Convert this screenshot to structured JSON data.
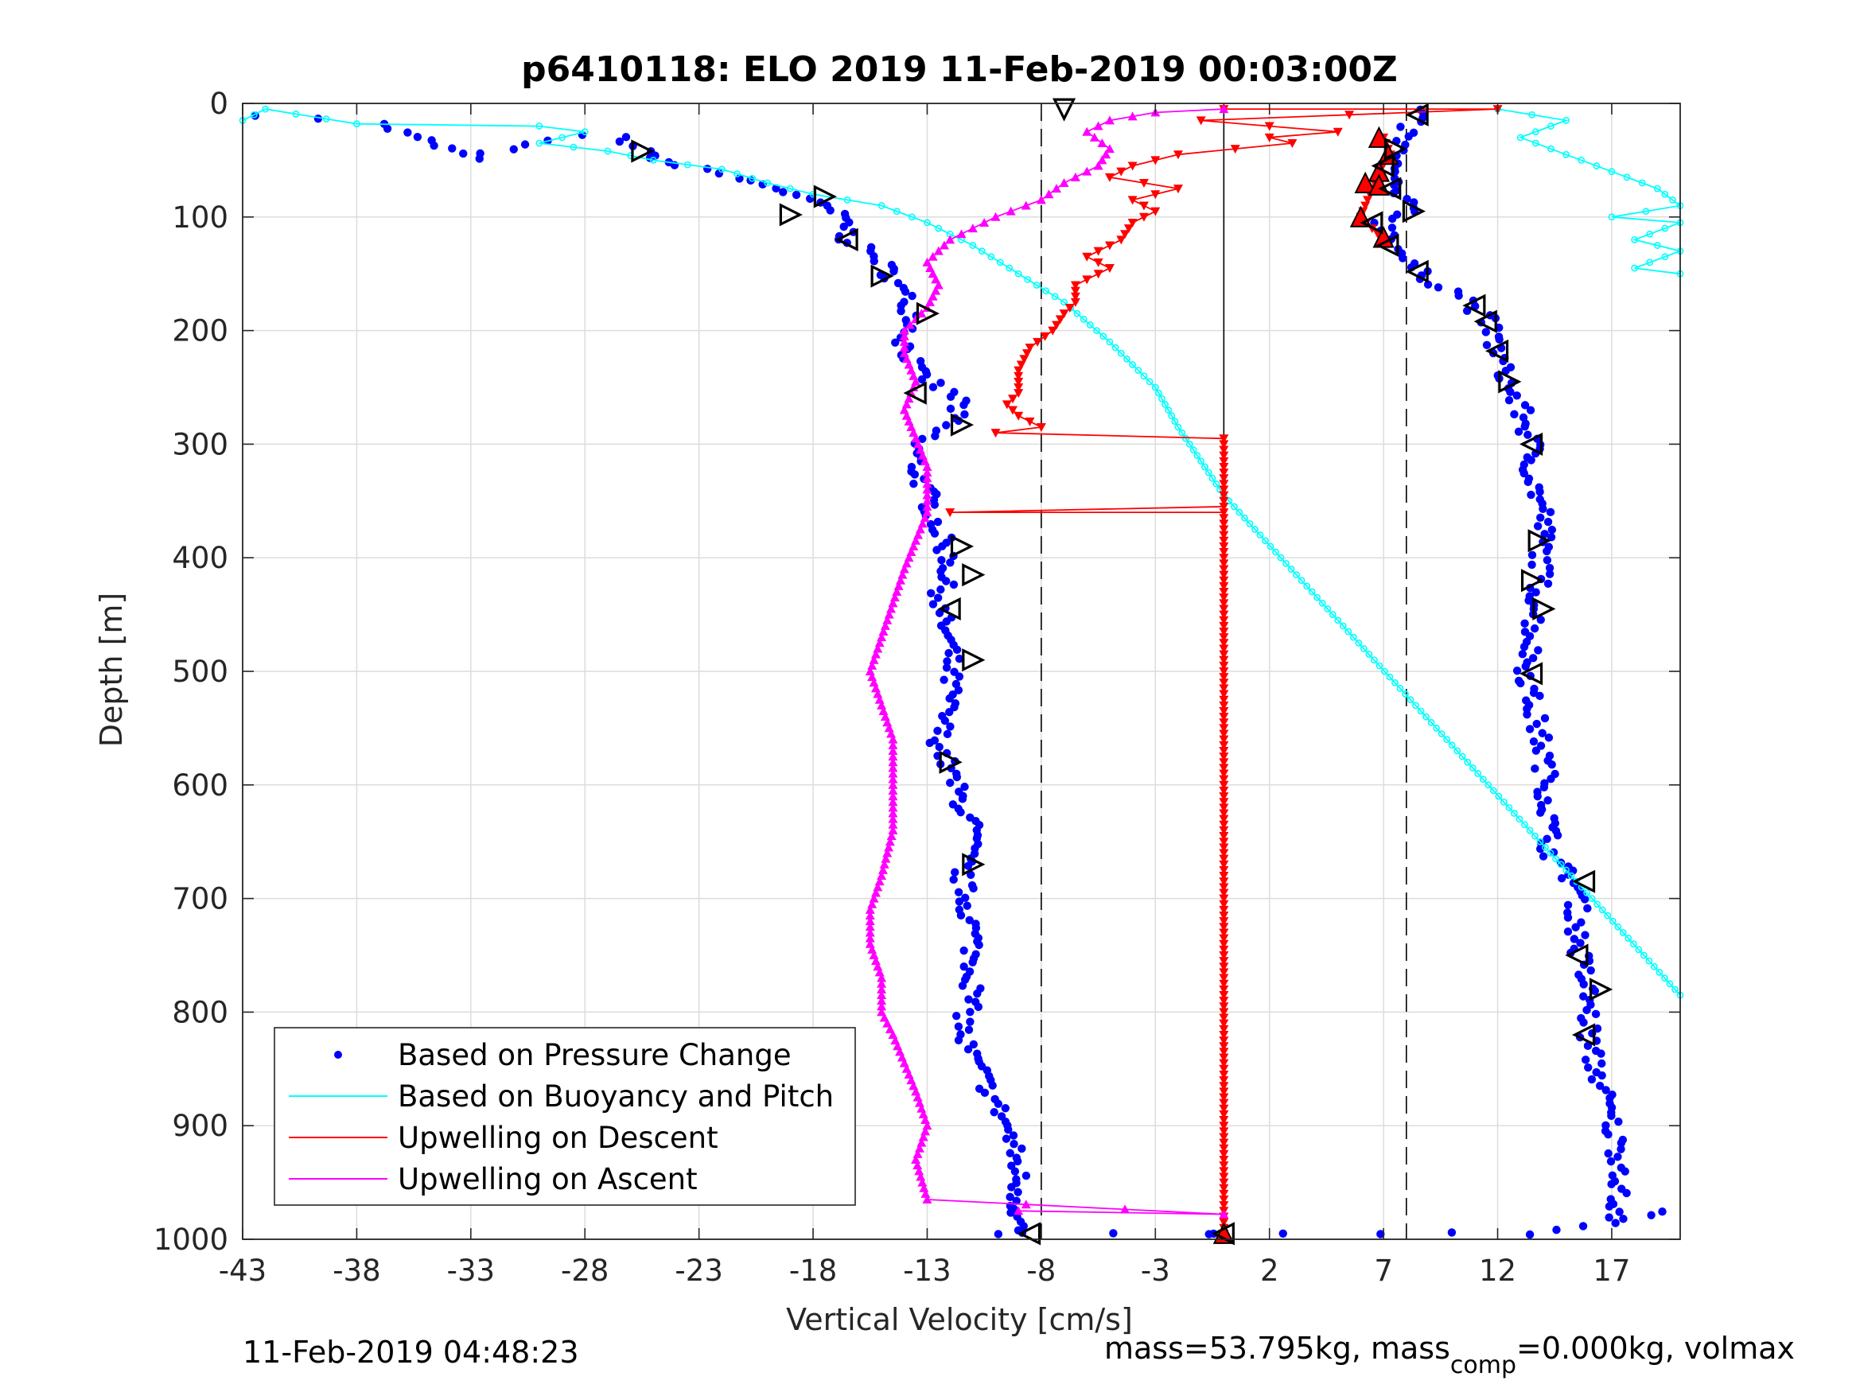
{
  "chart_data": {
    "type": "scatter",
    "title": "p6410118: ELO 2019 11-Feb-2019 00:03:00Z",
    "xlabel": "Vertical Velocity [cm/s]",
    "ylabel": "Depth [m]",
    "xlim": [
      -43,
      20
    ],
    "ylim": [
      0,
      1000
    ],
    "y_reversed": true,
    "xticks": [
      -43,
      -38,
      -33,
      -28,
      -23,
      -18,
      -13,
      -8,
      -3,
      2,
      7,
      12,
      17
    ],
    "yticks": [
      0,
      100,
      200,
      300,
      400,
      500,
      600,
      700,
      800,
      900,
      1000
    ],
    "grid": true,
    "legend_position": "bottom-left",
    "reference_lines": {
      "solid": [
        0
      ],
      "dashed": [
        -8,
        8
      ]
    },
    "colors": {
      "pressure": "#0000ff",
      "buoyancy": "#00ffff",
      "descent": "#ff0000",
      "ascent": "#ff00ff",
      "reference": "#000000"
    },
    "series": [
      {
        "name": "Based on Pressure Change",
        "style": "dots",
        "segments": [
          {
            "points": [
              [
                -42,
                10
              ],
              [
                -37,
                18
              ],
              [
                -33,
                48
              ],
              [
                -30,
                32
              ],
              [
                -28,
                28
              ],
              [
                -26.5,
                30
              ],
              [
                -25.5,
                42
              ],
              [
                -24,
                55
              ],
              [
                -22,
                62
              ],
              [
                -19.5,
                75
              ],
              [
                -18.5,
                84
              ],
              [
                -17.5,
                90
              ],
              [
                -16.5,
                105
              ],
              [
                -16.5,
                120
              ],
              [
                -15,
                138
              ],
              [
                -14.5,
                155
              ],
              [
                -14,
                170
              ],
              [
                -13.5,
                190
              ],
              [
                -14,
                210
              ],
              [
                -13.5,
                235
              ],
              [
                -12.5,
                250
              ],
              [
                -11.5,
                262
              ],
              [
                -12,
                280
              ],
              [
                -13.5,
                300
              ],
              [
                -13.5,
                320
              ],
              [
                -13,
                345
              ],
              [
                -12.5,
                375
              ],
              [
                -12,
                405
              ],
              [
                -12.5,
                440
              ],
              [
                -12,
                480
              ],
              [
                -12,
                520
              ],
              [
                -12.5,
                560
              ],
              [
                -12,
                590
              ],
              [
                -11,
                640
              ],
              [
                -11.5,
                680
              ],
              [
                -11,
                730
              ],
              [
                -11,
                780
              ],
              [
                -11.5,
                820
              ],
              [
                -10.5,
                860
              ],
              [
                -9.5,
                900
              ],
              [
                -9,
                940
              ],
              [
                -9,
                970
              ],
              [
                -9,
                995
              ]
            ]
          },
          {
            "points": [
              [
                8.5,
                5
              ],
              [
                8,
                25
              ],
              [
                7.5,
                45
              ],
              [
                7.3,
                65
              ],
              [
                7.5,
                80
              ],
              [
                8.3,
                95
              ],
              [
                7,
                105
              ],
              [
                7.5,
                120
              ],
              [
                8,
                140
              ],
              [
                9,
                155
              ],
              [
                10.5,
                170
              ],
              [
                11.5,
                190
              ],
              [
                12,
                220
              ],
              [
                12.5,
                250
              ],
              [
                13,
                270
              ],
              [
                13.5,
                300
              ],
              [
                13.5,
                330
              ],
              [
                14,
                360
              ],
              [
                14,
                390
              ],
              [
                13.8,
                430
              ],
              [
                13.5,
                470
              ],
              [
                13.3,
                500
              ],
              [
                13.5,
                530
              ],
              [
                14,
                570
              ],
              [
                14.2,
                610
              ],
              [
                14.3,
                660
              ],
              [
                15.5,
                690
              ],
              [
                15.5,
                740
              ],
              [
                16,
                790
              ],
              [
                16,
                830
              ],
              [
                16.5,
                860
              ],
              [
                17,
                900
              ],
              [
                17.5,
                940
              ],
              [
                17,
                980
              ]
            ]
          },
          {
            "points": [
              [
                -10,
                995
              ],
              [
                -5,
                995
              ],
              [
                -1,
                995
              ],
              [
                0,
                995
              ],
              [
                3,
                995
              ],
              [
                7,
                995
              ],
              [
                10,
                995
              ],
              [
                13,
                995
              ],
              [
                17,
                985
              ],
              [
                19,
                975
              ]
            ]
          }
        ]
      },
      {
        "name": "Based on Buoyancy and Pitch",
        "style": "line-markers",
        "segments": [
          {
            "points": [
              [
                -43,
                15
              ],
              [
                -42,
                5
              ],
              [
                -38,
                18
              ],
              [
                -30,
                20
              ],
              [
                -28,
                25
              ],
              [
                -30,
                35
              ],
              [
                -27,
                42
              ],
              [
                -25,
                50
              ],
              [
                -22,
                58
              ],
              [
                -20,
                70
              ],
              [
                -18,
                80
              ],
              [
                -15,
                90
              ],
              [
                -13,
                105
              ],
              [
                -11,
                125
              ],
              [
                -9,
                150
              ],
              [
                -7,
                175
              ],
              [
                -5,
                210
              ],
              [
                -3,
                250
              ],
              [
                -2,
                285
              ],
              [
                0,
                345
              ],
              [
                20,
                785
              ]
            ]
          },
          {
            "points": [
              [
                12,
                5
              ],
              [
                15,
                15
              ],
              [
                13,
                30
              ],
              [
                15,
                45
              ],
              [
                17,
                60
              ],
              [
                19,
                75
              ],
              [
                20,
                90
              ],
              [
                17,
                100
              ],
              [
                20,
                105
              ],
              [
                18,
                120
              ],
              [
                20,
                130
              ],
              [
                18,
                145
              ],
              [
                20,
                150
              ]
            ]
          }
        ]
      },
      {
        "name": "Upwelling on Descent",
        "style": "line-markers",
        "segments": [
          {
            "points": [
              [
                0,
                5
              ],
              [
                12,
                5
              ],
              [
                -1,
                15
              ],
              [
                5,
                25
              ],
              [
                2,
                30
              ],
              [
                3,
                35
              ],
              [
                -2,
                45
              ],
              [
                -4,
                55
              ],
              [
                -5,
                65
              ],
              [
                -2,
                75
              ],
              [
                -4,
                85
              ],
              [
                -3,
                95
              ],
              [
                -4,
                105
              ],
              [
                -4.5,
                120
              ],
              [
                -6,
                135
              ],
              [
                -5,
                145
              ],
              [
                -6.5,
                160
              ],
              [
                -6.5,
                175
              ],
              [
                -7,
                185
              ],
              [
                -7.5,
                200
              ],
              [
                -8.5,
                215
              ],
              [
                -9,
                235
              ],
              [
                -9,
                255
              ],
              [
                -9.5,
                265
              ],
              [
                -9,
                275
              ],
              [
                -8,
                285
              ],
              [
                -10,
                290
              ],
              [
                0,
                295
              ],
              [
                0,
                355
              ],
              [
                -12,
                360
              ],
              [
                0,
                360
              ],
              [
                0,
                995
              ]
            ]
          },
          {
            "points": [
              [
                7,
                30
              ],
              [
                7.3,
                45
              ],
              [
                6.8,
                60
              ],
              [
                6.5,
                75
              ],
              [
                6,
                100
              ],
              [
                6.5,
                110
              ],
              [
                7,
                120
              ]
            ]
          }
        ]
      },
      {
        "name": "Upwelling on Ascent",
        "style": "line-markers",
        "segments": [
          {
            "points": [
              [
                -9,
                975
              ],
              [
                0,
                978
              ],
              [
                -13,
                965
              ],
              [
                -13.5,
                930
              ],
              [
                -13,
                900
              ],
              [
                -13.5,
                870
              ],
              [
                -14,
                845
              ],
              [
                -14.5,
                820
              ],
              [
                -15,
                800
              ],
              [
                -15,
                770
              ],
              [
                -15.5,
                740
              ],
              [
                -15.5,
                710
              ],
              [
                -15,
                680
              ],
              [
                -14.5,
                640
              ],
              [
                -14.5,
                600
              ],
              [
                -14.5,
                560
              ],
              [
                -15,
                530
              ],
              [
                -15.5,
                500
              ],
              [
                -15,
                470
              ],
              [
                -14.5,
                440
              ],
              [
                -14,
                410
              ],
              [
                -13.5,
                385
              ],
              [
                -13,
                360
              ],
              [
                -13,
                320
              ],
              [
                -13.5,
                295
              ],
              [
                -14,
                270
              ],
              [
                -13.5,
                245
              ],
              [
                -14,
                220
              ],
              [
                -14,
                200
              ],
              [
                -13,
                180
              ],
              [
                -12.5,
                160
              ],
              [
                -13,
                140
              ],
              [
                -12,
                120
              ],
              [
                -10,
                100
              ],
              [
                -8,
                85
              ],
              [
                -7,
                70
              ],
              [
                -5.5,
                55
              ],
              [
                -5,
                40
              ],
              [
                -6,
                25
              ],
              [
                -5,
                15
              ],
              [
                -3,
                8
              ],
              [
                0,
                5
              ]
            ]
          }
        ]
      }
    ],
    "markers": {
      "style": "open-triangle",
      "points": [
        [
          -25.5,
          42,
          "right"
        ],
        [
          -17.5,
          82,
          "right"
        ],
        [
          -19,
          98,
          "right"
        ],
        [
          -16.5,
          120,
          "left"
        ],
        [
          -15,
          152,
          "right"
        ],
        [
          -13,
          185,
          "right"
        ],
        [
          -13.5,
          255,
          "left"
        ],
        [
          -11.5,
          283,
          "right"
        ],
        [
          -11.5,
          390,
          "right"
        ],
        [
          -11,
          415,
          "right"
        ],
        [
          -12,
          445,
          "left"
        ],
        [
          -11,
          490,
          "right"
        ],
        [
          -12,
          580,
          "right"
        ],
        [
          -11,
          670,
          "right"
        ],
        [
          -8.5,
          995,
          "left"
        ],
        [
          -7,
          5,
          "down"
        ],
        [
          0,
          995,
          "left"
        ],
        [
          8.5,
          10,
          "left"
        ],
        [
          7.5,
          40,
          "right"
        ],
        [
          7,
          55,
          "left"
        ],
        [
          7.3,
          75,
          "left"
        ],
        [
          8.3,
          95,
          "right"
        ],
        [
          6.5,
          105,
          "left"
        ],
        [
          7.2,
          125,
          "left"
        ],
        [
          8.5,
          148,
          "left"
        ],
        [
          11,
          178,
          "left"
        ],
        [
          11.5,
          192,
          "left"
        ],
        [
          12,
          218,
          "left"
        ],
        [
          12.5,
          245,
          "right"
        ],
        [
          13.5,
          300,
          "left"
        ],
        [
          13.8,
          385,
          "right"
        ],
        [
          13.5,
          420,
          "right"
        ],
        [
          14,
          445,
          "right"
        ],
        [
          13.5,
          502,
          "left"
        ],
        [
          15.8,
          685,
          "left"
        ],
        [
          15.5,
          750,
          "left"
        ],
        [
          16.5,
          780,
          "right"
        ],
        [
          15.8,
          820,
          "left"
        ]
      ]
    },
    "red_triangles": [
      [
        6.8,
        30
      ],
      [
        7.2,
        45
      ],
      [
        6.8,
        60
      ],
      [
        6.2,
        70
      ],
      [
        6.8,
        72
      ],
      [
        6,
        100
      ],
      [
        7,
        118
      ],
      [
        0,
        995
      ]
    ]
  },
  "footer": {
    "timestamp": "11-Feb-2019 04:48:23",
    "mass_text": "mass=53.795kg, mass",
    "mass_sub": "comp",
    "mass_rest": "=0.000kg, volmax"
  }
}
